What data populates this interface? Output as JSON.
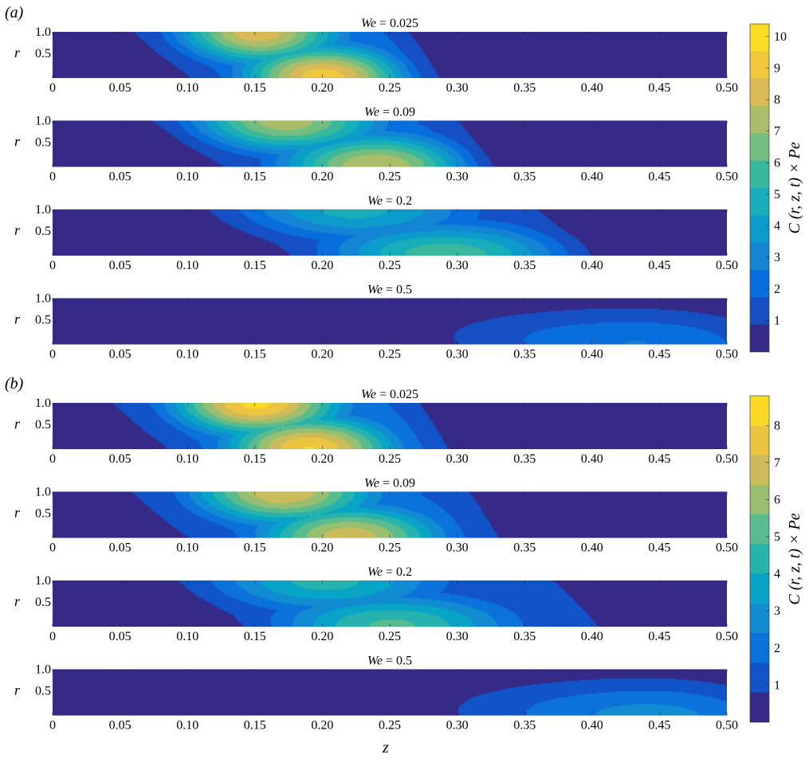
{
  "figure": {
    "x_axis_label": "z"
  },
  "colors": {
    "parula": [
      "#352a87",
      "#0363e1",
      "#1485d4",
      "#06a7c6",
      "#38b99e",
      "#92bf73",
      "#d9ba56",
      "#fcce2e",
      "#f9fb0e"
    ]
  },
  "chart_data": [
    {
      "type": "heatmap",
      "group": "a",
      "group_label": "(a)",
      "colorbar": {
        "label": "C (r, z, t) × Pe",
        "range": [
          0,
          10.4
        ],
        "ticks": [
          "1",
          "2",
          "3",
          "4",
          "5",
          "6",
          "7",
          "8",
          "9",
          "10"
        ]
      },
      "xlim": [
        0,
        0.5
      ],
      "ylim": [
        0,
        1
      ],
      "x_ticks": [
        "0",
        "0.05",
        "0.10",
        "0.15",
        "0.20",
        "0.25",
        "0.30",
        "0.35",
        "0.40",
        "0.45",
        "0.50"
      ],
      "y_ticks": [
        "1.0",
        "0.5"
      ],
      "ylabel": "r",
      "panels": [
        {
          "title_param": "We",
          "title_value": "= 0.025",
          "max": 10.2,
          "front_r1": 0.07,
          "front_r0": 0.11,
          "tail_r1": 0.26,
          "tail_r0": 0.28,
          "width": 0.12,
          "peaks": [
            {
              "z": 0.15,
              "r": 1.0,
              "value": 9.0
            },
            {
              "z": 0.2,
              "r": 0.0,
              "value": 9.8
            }
          ]
        },
        {
          "title_param": "We",
          "title_value": "= 0.09",
          "max": 8.4,
          "front_r1": 0.08,
          "front_r0": 0.13,
          "tail_r1": 0.3,
          "tail_r0": 0.32,
          "width": 0.14,
          "peaks": [
            {
              "z": 0.17,
              "r": 1.0,
              "value": 8.0
            },
            {
              "z": 0.24,
              "r": 0.0,
              "value": 8.3
            }
          ]
        },
        {
          "title_param": "We",
          "title_value": "= 0.2",
          "max": 6.2,
          "front_r1": 0.11,
          "front_r0": 0.17,
          "tail_r1": 0.37,
          "tail_r0": 0.4,
          "width": 0.18,
          "peaks": [
            {
              "z": 0.22,
              "r": 1.0,
              "value": 5.0
            },
            {
              "z": 0.29,
              "r": 0.0,
              "value": 6.2
            }
          ]
        },
        {
          "title_param": "We",
          "title_value": "= 0.5",
          "max": 2.9,
          "front_r1": 0.15,
          "front_r0": 0.26,
          "tail_r1": 0.51,
          "tail_r0": 0.53,
          "width": 0.28,
          "peaks": [
            {
              "z": 0.44,
              "r": 0.0,
              "value": 2.9
            }
          ]
        }
      ]
    },
    {
      "type": "heatmap",
      "group": "b",
      "group_label": "(b)",
      "colorbar": {
        "label": "C (r, z, t) × Pe",
        "range": [
          0,
          8.8
        ],
        "ticks": [
          "1",
          "2",
          "3",
          "4",
          "5",
          "6",
          "7",
          "8"
        ]
      },
      "xlim": [
        0,
        0.5
      ],
      "ylim": [
        0,
        1
      ],
      "x_ticks": [
        "0",
        "0.05",
        "0.10",
        "0.15",
        "0.20",
        "0.25",
        "0.30",
        "0.35",
        "0.40",
        "0.45",
        "0.50"
      ],
      "y_ticks": [
        "1.0",
        "0.5"
      ],
      "ylabel": "r",
      "panels": [
        {
          "title_param": "We",
          "title_value": "= 0.025",
          "max": 8.7,
          "front_r1": 0.05,
          "front_r0": 0.09,
          "tail_r1": 0.27,
          "tail_r0": 0.29,
          "width": 0.12,
          "peaks": [
            {
              "z": 0.15,
              "r": 1.0,
              "value": 8.7
            },
            {
              "z": 0.19,
              "r": 0.0,
              "value": 8.5
            }
          ]
        },
        {
          "title_param": "We",
          "title_value": "= 0.09",
          "max": 7.6,
          "front_r1": 0.06,
          "front_r0": 0.1,
          "tail_r1": 0.31,
          "tail_r0": 0.33,
          "width": 0.13,
          "peaks": [
            {
              "z": 0.17,
              "r": 1.0,
              "value": 7.5
            },
            {
              "z": 0.22,
              "r": 0.0,
              "value": 7.3
            }
          ]
        },
        {
          "title_param": "We",
          "title_value": "= 0.2",
          "max": 5.3,
          "front_r1": 0.08,
          "front_r0": 0.13,
          "tail_r1": 0.39,
          "tail_r0": 0.42,
          "width": 0.17,
          "peaks": [
            {
              "z": 0.2,
              "r": 1.0,
              "value": 4.6
            },
            {
              "z": 0.25,
              "r": 0.0,
              "value": 5.3
            }
          ]
        },
        {
          "title_param": "We",
          "title_value": "= 0.5",
          "max": 3.0,
          "front_r1": 0.14,
          "front_r0": 0.24,
          "tail_r1": 0.51,
          "tail_r0": 0.53,
          "width": 0.28,
          "peaks": [
            {
              "z": 0.46,
              "r": 0.0,
              "value": 3.0
            }
          ]
        }
      ]
    }
  ]
}
